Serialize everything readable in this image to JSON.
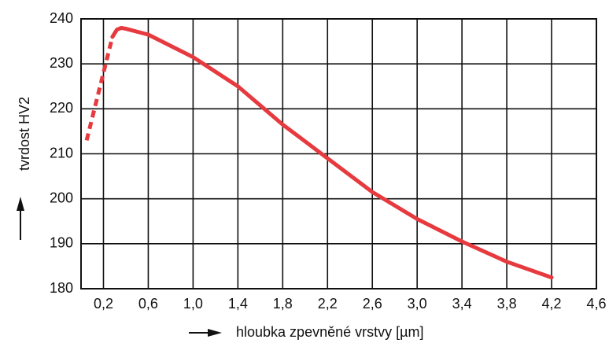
{
  "chart_data": {
    "type": "line",
    "ylabel": "tvrdost HV2",
    "xlabel": "hloubka zpevněné vrstvy [µm]",
    "series": [
      {
        "color": "#e63a3f",
        "dashed": true,
        "x": [
          0.05,
          0.1,
          0.2,
          0.28
        ],
        "values": [
          213,
          218,
          228,
          236
        ]
      },
      {
        "color": "#e63a3f",
        "dashed": false,
        "x": [
          0.28,
          0.32,
          0.36,
          0.4,
          0.6,
          1.0,
          1.4,
          1.8,
          2.2,
          2.6,
          3.0,
          3.4,
          3.8,
          4.2
        ],
        "values": [
          236,
          237.6,
          238,
          237.8,
          236.5,
          231.5,
          225,
          216.5,
          209,
          201.5,
          195.5,
          190.5,
          186,
          182.5
        ]
      }
    ],
    "xlim": [
      0,
      4.6
    ],
    "xticks": [
      {
        "value": 0.2,
        "label": "0,2"
      },
      {
        "value": 0.6,
        "label": "0,6"
      },
      {
        "value": 1.0,
        "label": "1,0"
      },
      {
        "value": 1.4,
        "label": "1,4"
      },
      {
        "value": 1.8,
        "label": "1,8"
      },
      {
        "value": 2.2,
        "label": "2,2"
      },
      {
        "value": 2.6,
        "label": "2,6"
      },
      {
        "value": 3.0,
        "label": "3,0"
      },
      {
        "value": 3.4,
        "label": "3,4"
      },
      {
        "value": 3.8,
        "label": "3,8"
      },
      {
        "value": 4.2,
        "label": "4,2"
      },
      {
        "value": 4.6,
        "label": "4,6"
      }
    ],
    "ylim": [
      180,
      240
    ],
    "yticks": [
      180,
      190,
      200,
      210,
      220,
      230,
      240
    ],
    "grid": true
  }
}
